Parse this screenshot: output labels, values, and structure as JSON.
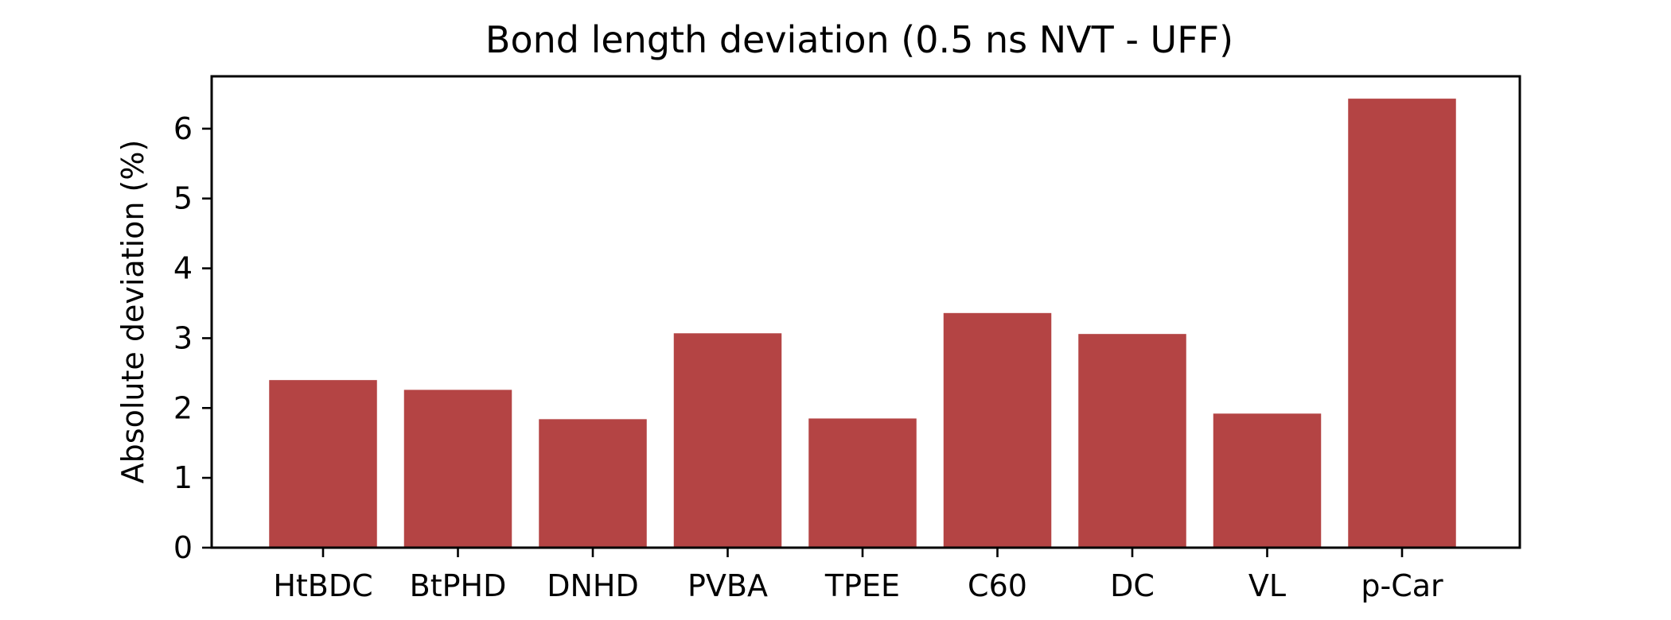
{
  "chart_data": {
    "type": "bar",
    "title": "Bond length deviation (0.5 ns NVT - UFF)",
    "xlabel": "",
    "ylabel": "Absolute deviation (%)",
    "categories": [
      "HtBDC",
      "BtPHD",
      "DNHD",
      "PVBA",
      "TPEE",
      "C60",
      "DC",
      "VL",
      "p-Car"
    ],
    "values": [
      2.4,
      2.26,
      1.84,
      3.07,
      1.85,
      3.36,
      3.06,
      1.92,
      6.43
    ],
    "ylim": [
      0,
      6.75
    ],
    "yticks": [
      0,
      1,
      2,
      3,
      4,
      5,
      6
    ],
    "bar_color": "#b44444",
    "grid": false
  }
}
